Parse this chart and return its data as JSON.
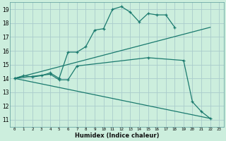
{
  "xlabel": "Humidex (Indice chaleur)",
  "xlim": [
    -0.5,
    23.5
  ],
  "ylim": [
    10.5,
    19.5
  ],
  "xticks": [
    0,
    1,
    2,
    3,
    4,
    5,
    6,
    7,
    8,
    9,
    10,
    11,
    12,
    13,
    14,
    15,
    16,
    17,
    18,
    19,
    20,
    21,
    22,
    23
  ],
  "yticks": [
    11,
    12,
    13,
    14,
    15,
    16,
    17,
    18,
    19
  ],
  "bg_color": "#cceedd",
  "grid_color": "#aacccc",
  "line_color": "#1a7a6e",
  "line1_x": [
    0,
    1,
    2,
    3,
    4,
    5,
    6,
    7,
    8,
    9,
    10,
    11,
    12,
    13,
    14,
    15,
    16,
    17,
    18
  ],
  "line1_y": [
    14.0,
    14.2,
    14.1,
    14.2,
    14.4,
    14.0,
    15.9,
    15.9,
    16.3,
    17.5,
    17.6,
    19.0,
    19.2,
    18.8,
    18.1,
    18.7,
    18.6,
    18.6,
    17.7
  ],
  "line2_x": [
    0,
    4,
    5,
    6,
    7,
    15,
    19,
    20,
    21,
    22
  ],
  "line2_y": [
    14.0,
    14.3,
    13.9,
    13.9,
    14.9,
    15.5,
    15.3,
    12.3,
    11.6,
    11.1
  ],
  "line3_x": [
    0,
    22
  ],
  "line3_y": [
    14.0,
    17.7
  ],
  "line4_x": [
    0,
    22
  ],
  "line4_y": [
    14.0,
    11.1
  ]
}
